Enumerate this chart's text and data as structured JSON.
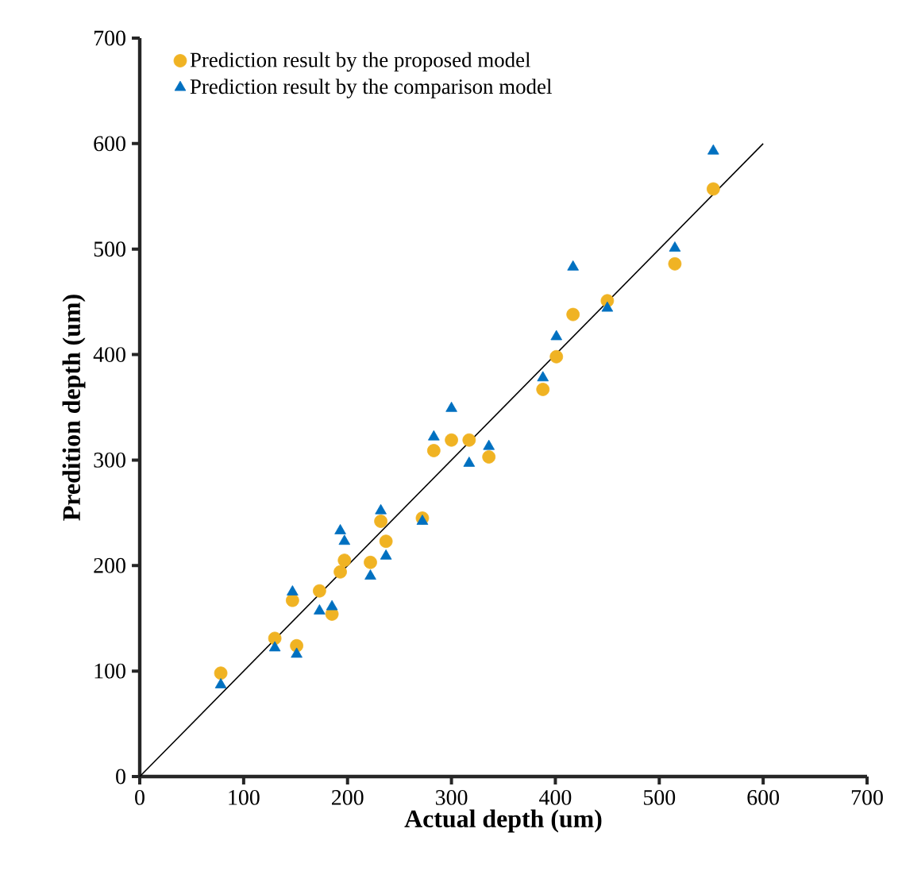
{
  "chart_data": {
    "type": "scatter",
    "xlabel": "Actual depth (um)",
    "ylabel": "Predition depth (um)",
    "xlim": [
      0,
      700
    ],
    "ylim": [
      0,
      700
    ],
    "xticks": [
      0,
      100,
      200,
      300,
      400,
      500,
      600,
      700
    ],
    "yticks": [
      0,
      100,
      200,
      300,
      400,
      500,
      600,
      700
    ],
    "legend": "top left",
    "series": [
      {
        "name": "Prediction result by the proposed model",
        "color": "#f0b323",
        "marker": "circle",
        "x": [
          78,
          130,
          151,
          147,
          173,
          185,
          193,
          197,
          222,
          237,
          232,
          272,
          283,
          300,
          317,
          336,
          388,
          401,
          417,
          450,
          515,
          552
        ],
        "values": [
          98,
          131,
          124,
          167,
          176,
          154,
          194,
          205,
          203,
          223,
          242,
          245,
          309,
          319,
          319,
          303,
          367,
          398,
          438,
          451,
          486,
          557
        ]
      },
      {
        "name": "Prediction result by the comparison model",
        "color": "#0070c0",
        "marker": "triangle",
        "x": [
          78,
          130,
          151,
          147,
          173,
          185,
          193,
          197,
          222,
          237,
          232,
          272,
          283,
          300,
          317,
          336,
          388,
          401,
          417,
          450,
          515,
          552
        ],
        "values": [
          87,
          122,
          116,
          175,
          157,
          161,
          233,
          223,
          190,
          209,
          252,
          242,
          322,
          349,
          297,
          313,
          378,
          417,
          483,
          444,
          501,
          593
        ]
      },
      {
        "type": "line",
        "color": "#000000",
        "marker": "none",
        "x": [
          0,
          600
        ],
        "values": [
          0,
          600
        ]
      }
    ]
  }
}
